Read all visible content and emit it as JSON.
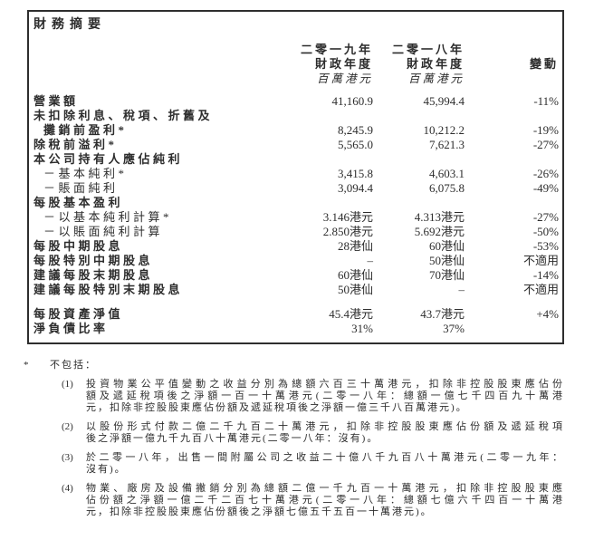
{
  "summary": {
    "title": "財務摘要",
    "columns": {
      "fy2019": {
        "line1": "二零一九年",
        "line2": "財政年度",
        "unit": "百萬港元"
      },
      "fy2018": {
        "line1": "二零一八年",
        "line2": "財政年度",
        "unit": "百萬港元"
      },
      "change": {
        "label": "變動"
      }
    },
    "rows": [
      {
        "label": "營業額",
        "bold": true,
        "fy2019": "41,160.9",
        "fy2018": "45,994.4",
        "change": "-11%"
      },
      {
        "label": "未扣除利息、稅項、折舊及",
        "bold": true,
        "fy2019": "",
        "fy2018": "",
        "change": ""
      },
      {
        "label": "攤銷前盈利*",
        "bold": true,
        "indent": true,
        "fy2019": "8,245.9",
        "fy2018": "10,212.2",
        "change": "-19%"
      },
      {
        "label": "除稅前溢利*",
        "bold": true,
        "fy2019": "5,565.0",
        "fy2018": "7,621.3",
        "change": "-27%"
      },
      {
        "label": "本公司持有人應佔純利",
        "bold": true,
        "fy2019": "",
        "fy2018": "",
        "change": ""
      },
      {
        "label": "－基本純利*",
        "indent": true,
        "fy2019": "3,415.8",
        "fy2018": "4,603.1",
        "change": "-26%"
      },
      {
        "label": "－賬面純利",
        "indent": true,
        "fy2019": "3,094.4",
        "fy2018": "6,075.8",
        "change": "-49%"
      },
      {
        "label": "每股基本盈利",
        "bold": true,
        "fy2019": "",
        "fy2018": "",
        "change": ""
      },
      {
        "label": "－以基本純利計算*",
        "indent": true,
        "fy2019": "3.146港元",
        "fy2018": "4.313港元",
        "change": "-27%"
      },
      {
        "label": "－以賬面純利計算",
        "indent": true,
        "fy2019": "2.850港元",
        "fy2018": "5.692港元",
        "change": "-50%"
      },
      {
        "label": "每股中期股息",
        "bold": true,
        "fy2019": "28港仙",
        "fy2018": "60港仙",
        "change": "-53%"
      },
      {
        "label": "每股特別中期股息",
        "bold": true,
        "fy2019": "–",
        "fy2018": "50港仙",
        "change": "不適用"
      },
      {
        "label": "建議每股末期股息",
        "bold": true,
        "fy2019": "60港仙",
        "fy2018": "70港仙",
        "change": "-14%"
      },
      {
        "label": "建議每股特別末期股息",
        "bold": true,
        "fy2019": "50港仙",
        "fy2018": "–",
        "change": "不適用"
      },
      {
        "label": "每股資產淨值",
        "bold": true,
        "gap": true,
        "fy2019": "45.4港元",
        "fy2018": "43.7港元",
        "change": "+4%"
      },
      {
        "label": "淨負債比率",
        "bold": true,
        "fy2019": "31%",
        "fy2018": "37%",
        "change": ""
      }
    ]
  },
  "footnotes": {
    "marker": "*",
    "title": "不包括：",
    "items": [
      {
        "marker": "(1)",
        "lines": [
          "投資物業公平值變動之收益分別為總額六百三十萬港元，扣除非控股股東應佔份",
          "額及遞延稅項後之淨額一百一十萬港元(二零一八年：總額一億七千四百九十萬港",
          "元，扣除非控股股東應佔份額及遞延稅項後之淨額一億三千八百萬港元)。"
        ]
      },
      {
        "marker": "(2)",
        "lines": [
          "以股份形式付款二億二千九百二十萬港元，扣除非控股股東應佔份額及遞延稅項",
          "後之淨額一億九千九百八十萬港元(二零一八年：沒有)。"
        ]
      },
      {
        "marker": "(3)",
        "lines": [
          "於二零一八年，出售一間附屬公司之收益二十億八千九百八十萬港元(二零一九年：",
          "沒有)。"
        ]
      },
      {
        "marker": "(4)",
        "lines": [
          "物業、廠房及設備撇銷分別為總額二億一千九百一十萬港元，扣除非控股股東應",
          "佔份額之淨額一億二千二百七十萬港元(二零一八年：總額七億六千四百一十萬港",
          "元，扣除非控股股東應佔份額後之淨額七億五千五百一十萬港元)。"
        ]
      }
    ]
  },
  "colors": {
    "text": "#2d2d2d",
    "border": "#2e2e2e",
    "background": "#ffffff"
  }
}
